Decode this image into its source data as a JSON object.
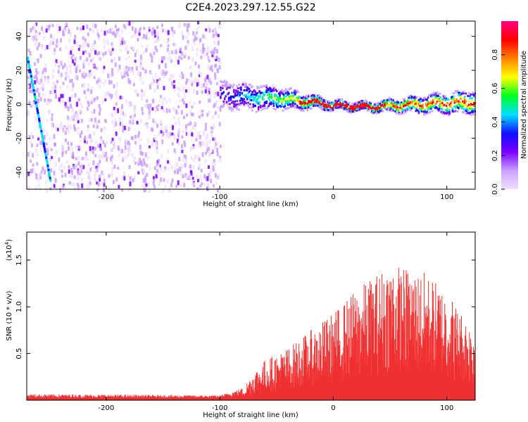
{
  "title": "C2E4.2023.297.12.55.G22",
  "chart_data": [
    {
      "type": "heatmap",
      "xlabel": "Height of straight line (km)",
      "ylabel": "Frequency (Hz)",
      "xlim": [
        -270,
        125
      ],
      "ylim": [
        -50,
        49
      ],
      "xticks": [
        -200,
        -100,
        0,
        100
      ],
      "yticks": [
        -40,
        -20,
        0,
        20,
        40
      ],
      "colorbar": {
        "label": "Normalized spectral amplitude",
        "range": [
          0,
          1
        ],
        "ticks": [
          "0.0",
          "0.2",
          "0.4",
          "0.6",
          "0.8"
        ],
        "colormap": [
          "#f0e0ff",
          "#c9a0ff",
          "#7a00ff",
          "#1010ff",
          "#00e0ff",
          "#00ff20",
          "#ffff00",
          "#ff8000",
          "#ff0000",
          "#ff0080"
        ]
      },
      "noise_region": {
        "x": [
          -270,
          -100
        ],
        "freq": [
          -50,
          49
        ]
      },
      "signal_band": {
        "x": [
          -100,
          -50,
          -20,
          0,
          30,
          60,
          90,
          125
        ],
        "center_hz": [
          6,
          4,
          2,
          0,
          -1,
          0,
          1,
          2
        ],
        "halfwidth_hz": [
          6,
          5,
          3,
          2,
          2,
          3,
          4,
          5
        ]
      },
      "streak": {
        "x": [
          -270,
          -250
        ],
        "freq": [
          28,
          -44
        ]
      }
    },
    {
      "type": "area",
      "xlabel": "Height of straight line (km)",
      "ylabel": "SNR (10 * v/v)",
      "multiplier": "(x10",
      "multiplier_exp": "4",
      "multiplier_close": ")",
      "xlim": [
        -270,
        125
      ],
      "ylim": [
        0,
        1.8
      ],
      "xticks": [
        -200,
        -100,
        0,
        100
      ],
      "yticks": [
        {
          "v": 0.5,
          "label": "0.5"
        },
        {
          "v": 1.0,
          "label": "1.0"
        },
        {
          "v": 1.5,
          "label": "1.5"
        }
      ],
      "color": "#f03030",
      "envelope": {
        "x": [
          -270,
          -100,
          -80,
          -70,
          -60,
          -40,
          -20,
          0,
          20,
          40,
          50,
          60,
          80,
          100,
          110,
          125
        ],
        "y": [
          0.05,
          0.04,
          0.1,
          0.25,
          0.35,
          0.45,
          0.6,
          0.75,
          0.95,
          1.1,
          1.2,
          1.15,
          1.1,
          0.95,
          0.8,
          0.6
        ]
      }
    }
  ]
}
